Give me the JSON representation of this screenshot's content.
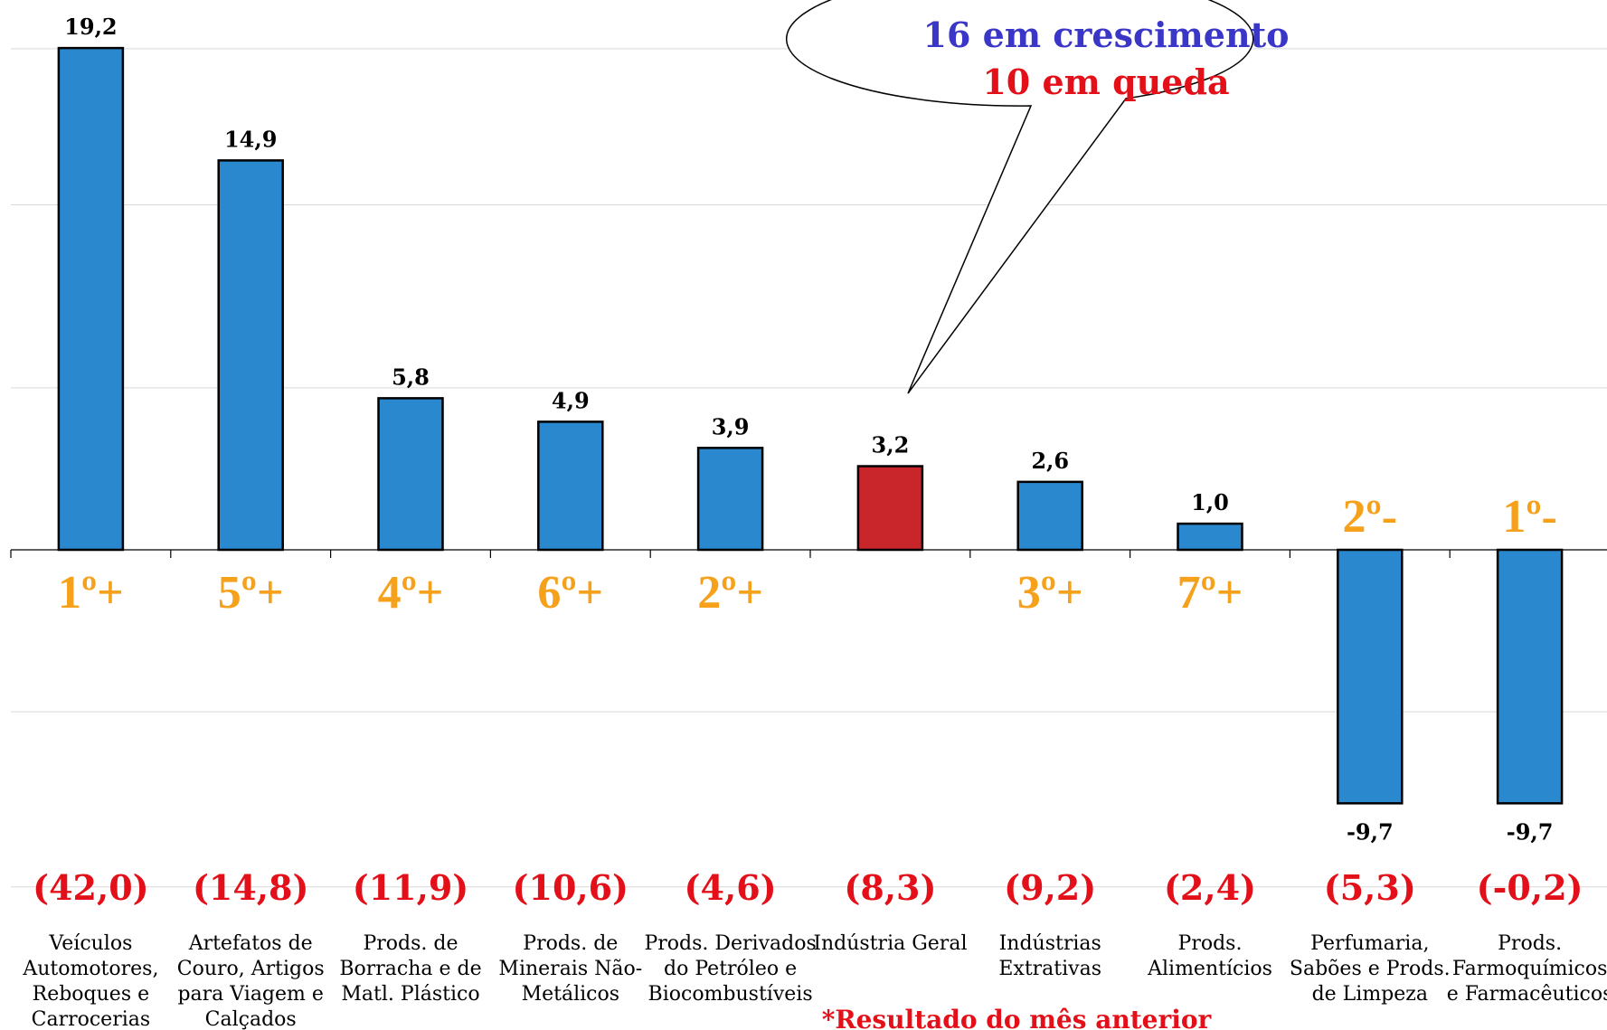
{
  "chart_data": {
    "type": "bar",
    "categories": [
      "Veículos Automotores, Reboques e Carrocerias",
      "Artefatos de Couro, Artigos para Viagem e Calçados",
      "Prods. de Borracha e de Matl. Plástico",
      "Prods. de Minerais Não-Metálicos",
      "Prods. Derivados do Petróleo e Biocombustíveis",
      "Indústria Geral",
      "Indústrias Extrativas",
      "Prods. Alimentícios",
      "Perfumaria, Sabões e Prods. de Limpeza",
      "Prods. Farmoquímicos e Farmacêuticos"
    ],
    "category_lines": [
      [
        "Veículos",
        "Automotores,",
        "Reboques e",
        "Carrocerias"
      ],
      [
        "Artefatos de",
        "Couro, Artigos",
        "para Viagem e",
        "Calçados"
      ],
      [
        "Prods. de",
        "Borracha e de",
        "Matl. Plástico"
      ],
      [
        "Prods. de",
        "Minerais Não-",
        "Metálicos"
      ],
      [
        "Prods. Derivados",
        "do Petróleo e",
        "Biocombustíveis"
      ],
      [
        "Indústria Geral"
      ],
      [
        "Indústrias",
        "Extrativas"
      ],
      [
        "Prods.",
        "Alimentícios"
      ],
      [
        "Perfumaria,",
        "Sabões e Prods.",
        "de Limpeza"
      ],
      [
        "Prods.",
        "Farmoquímicos",
        "e Farmacêuticos"
      ]
    ],
    "values": [
      19.2,
      14.9,
      5.8,
      4.9,
      3.9,
      3.2,
      2.6,
      1.0,
      -9.7,
      -9.7
    ],
    "value_labels": [
      "19,2",
      "14,9",
      "5,8",
      "4,9",
      "3,9",
      "3,2",
      "2,6",
      "1,0",
      "-9,7",
      "-9,7"
    ],
    "rank_labels": [
      "1º+",
      "5º+",
      "4º+",
      "6º+",
      "2º+",
      "",
      "3º+",
      "7º+",
      "2º-",
      "1º-"
    ],
    "previous_month_labels": [
      "(42,0)",
      "(14,8)",
      "(11,9)",
      "(10,6)",
      "(4,6)",
      "(8,3)",
      "(9,2)",
      "(2,4)",
      "(5,3)",
      "(-0,2)"
    ],
    "highlight_index": 5,
    "ylim": [
      -19.2,
      21
    ],
    "grid": true,
    "title": "",
    "xlabel": "",
    "ylabel": ""
  },
  "callout": {
    "line1": "16 em crescimento",
    "line2": "10 em queda"
  },
  "footnote": "*Resultado do mês anterior",
  "colors": {
    "bar": "#2a88cf",
    "highlight_bar": "#c8262a",
    "rank": "#f5a11c",
    "previous": "#e3101a",
    "callout_blue": "#3a36c8",
    "callout_red": "#e3101a",
    "grid": "#d9d9d9"
  }
}
